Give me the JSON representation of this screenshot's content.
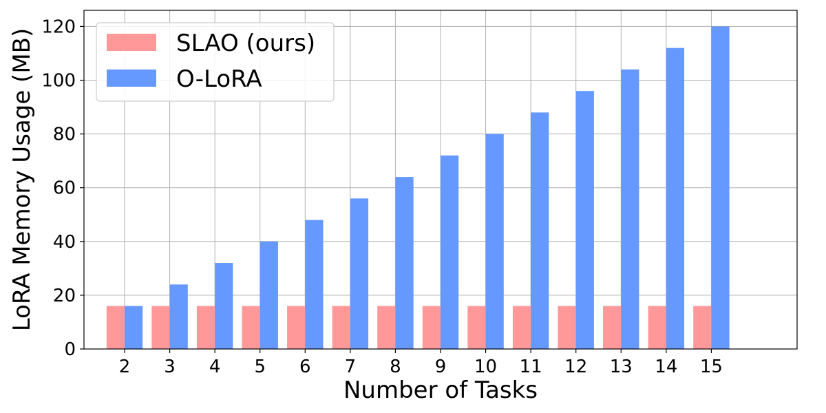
{
  "chart_data": {
    "type": "bar",
    "title": "",
    "xlabel": "Number of Tasks",
    "ylabel": "LoRA Memory Usage (MB)",
    "categories": [
      "2",
      "3",
      "4",
      "5",
      "6",
      "7",
      "8",
      "9",
      "10",
      "11",
      "12",
      "13",
      "14",
      "15"
    ],
    "series": [
      {
        "name": "SLAO (ours)",
        "color": "#ff9999",
        "values": [
          16,
          16,
          16,
          16,
          16,
          16,
          16,
          16,
          16,
          16,
          16,
          16,
          16,
          16
        ]
      },
      {
        "name": "O-LoRA",
        "color": "#6699ff",
        "values": [
          16,
          24,
          32,
          40,
          48,
          56,
          64,
          72,
          80,
          88,
          96,
          104,
          112,
          120
        ]
      }
    ],
    "ylim": [
      0,
      126
    ],
    "yticks": [
      0,
      20,
      40,
      60,
      80,
      100,
      120
    ],
    "grid": true,
    "legend_position": "top-left"
  }
}
